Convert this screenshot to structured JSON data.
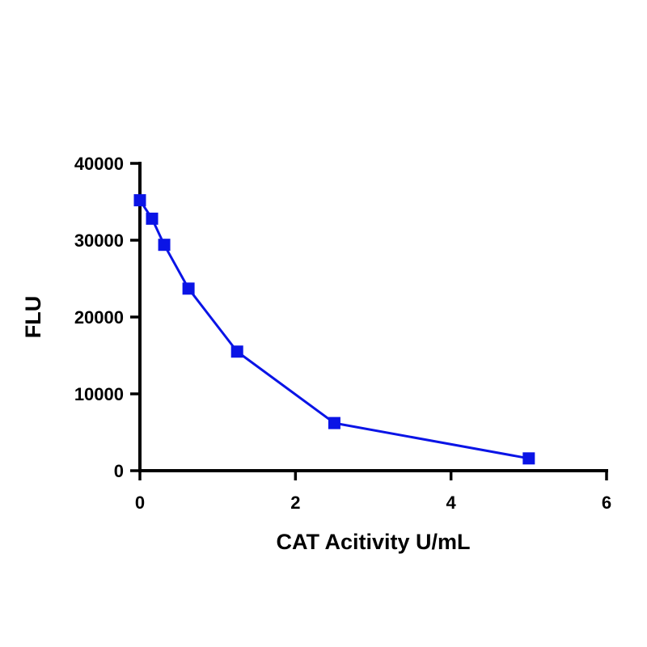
{
  "chart_data": {
    "type": "line",
    "title": "",
    "xlabel": "CAT Acitivity U/mL",
    "ylabel": "FLU",
    "xlim": [
      0,
      6
    ],
    "ylim": [
      0,
      40000
    ],
    "x_ticks": [
      0,
      2,
      4,
      6
    ],
    "y_ticks": [
      0,
      10000,
      20000,
      30000,
      40000
    ],
    "x_tick_labels": [
      "0",
      "2",
      "4",
      "6"
    ],
    "y_tick_labels": [
      "0",
      "10000",
      "20000",
      "30000",
      "40000"
    ],
    "grid": false,
    "legend": "none",
    "series": [
      {
        "color": "#0a14e6",
        "marker": "square",
        "x": [
          0,
          0.156,
          0.3125,
          0.625,
          1.25,
          2.5,
          5
        ],
        "y": [
          35200,
          32800,
          29400,
          23700,
          15500,
          6200,
          1600
        ]
      }
    ]
  }
}
